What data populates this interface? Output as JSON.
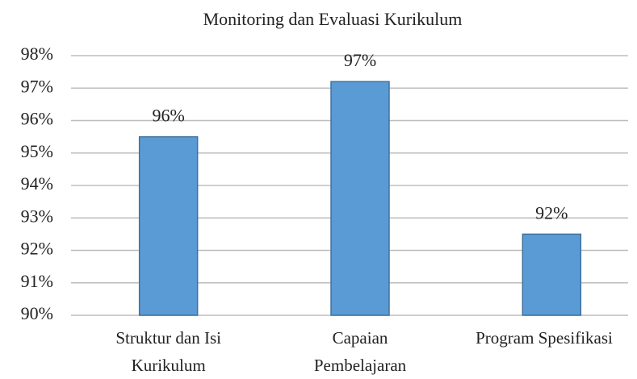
{
  "chart_data": {
    "type": "bar",
    "title": "Monitoring dan Evaluasi  Kurikulum",
    "categories": [
      "Struktur dan Isi\nKurikulum",
      "Capaian\nPembelajaran",
      "Program Spesifikasi"
    ],
    "values": [
      95.5,
      97.2,
      92.5
    ],
    "value_labels": [
      "96%",
      "97%",
      "92%"
    ],
    "color": "#5b9bd5",
    "ylim": [
      90,
      98
    ],
    "yticks": [
      {
        "value": 90,
        "label": "90%"
      },
      {
        "value": 91,
        "label": "91%"
      },
      {
        "value": 92,
        "label": "92%"
      },
      {
        "value": 93,
        "label": "93%"
      },
      {
        "value": 94,
        "label": "94%"
      },
      {
        "value": 95,
        "label": "95%"
      },
      {
        "value": 96,
        "label": "96%"
      },
      {
        "value": 97,
        "label": "97%"
      },
      {
        "value": 98,
        "label": "98%"
      }
    ],
    "grid": true
  }
}
